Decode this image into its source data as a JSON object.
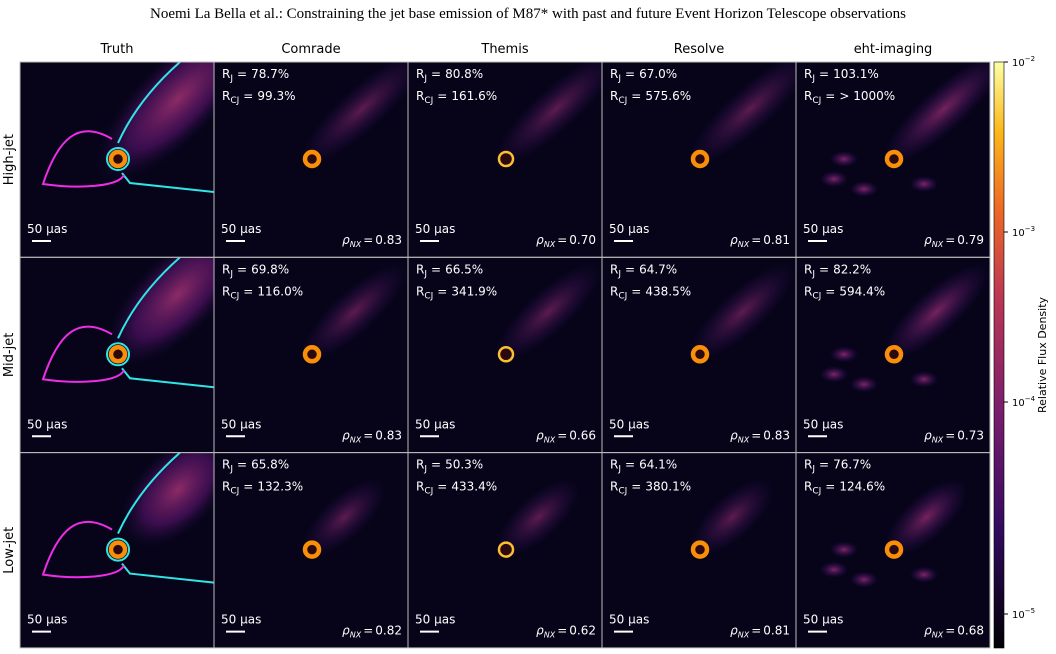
{
  "header": "Noemi La Bella  et al.: Constraining the jet base emission of M87* with past and future Event Horizon Telescope observations",
  "columns": [
    "Truth",
    "Comrade",
    "Themis",
    "Resolve",
    "eht-imaging"
  ],
  "labels": {
    "r": "R",
    "j_sub": "J",
    "cj_sub": "CJ",
    "equals": "=",
    "rho": "ρ",
    "rho_sub": "NX"
  },
  "rows": [
    {
      "label": "High-jet",
      "panels": [
        {
          "scale_bar": "50 μas"
        },
        {
          "r_j": "78.7%",
          "r_cj": "99.3%",
          "rho": "0.83",
          "scale_bar": "50 μas"
        },
        {
          "r_j": "80.8%",
          "r_cj": "161.6%",
          "rho": "0.70",
          "scale_bar": "50 μas"
        },
        {
          "r_j": "67.0%",
          "r_cj": "575.6%",
          "rho": "0.81",
          "scale_bar": "50 μas"
        },
        {
          "r_j": "103.1%",
          "r_cj": "> 1000%",
          "rho": "0.79",
          "scale_bar": "50 μas"
        }
      ]
    },
    {
      "label": "Mid-jet",
      "panels": [
        {
          "scale_bar": "50 μas"
        },
        {
          "r_j": "69.8%",
          "r_cj": "116.0%",
          "rho": "0.83",
          "scale_bar": "50 μas"
        },
        {
          "r_j": "66.5%",
          "r_cj": "341.9%",
          "rho": "0.66",
          "scale_bar": "50 μas"
        },
        {
          "r_j": "64.7%",
          "r_cj": "438.5%",
          "rho": "0.83",
          "scale_bar": "50 μas"
        },
        {
          "r_j": "82.2%",
          "r_cj": "594.4%",
          "rho": "0.73",
          "scale_bar": "50 μas"
        }
      ]
    },
    {
      "label": "Low-jet",
      "panels": [
        {
          "scale_bar": "50 μas"
        },
        {
          "r_j": "65.8%",
          "r_cj": "132.3%",
          "rho": "0.82",
          "scale_bar": "50 μas"
        },
        {
          "r_j": "50.3%",
          "r_cj": "433.4%",
          "rho": "0.62",
          "scale_bar": "50 μas"
        },
        {
          "r_j": "64.1%",
          "r_cj": "380.1%",
          "rho": "0.81",
          "scale_bar": "50 μas"
        },
        {
          "r_j": "76.7%",
          "r_cj": "124.6%",
          "rho": "0.68",
          "scale_bar": "50 μas"
        }
      ]
    }
  ],
  "colorbar": {
    "label": "Relative Flux Density",
    "ticks": [
      {
        "base": "10",
        "exponent": "−2"
      },
      {
        "base": "10",
        "exponent": "−3"
      },
      {
        "base": "10",
        "exponent": "−4"
      },
      {
        "base": "10",
        "exponent": "−5"
      }
    ]
  }
}
